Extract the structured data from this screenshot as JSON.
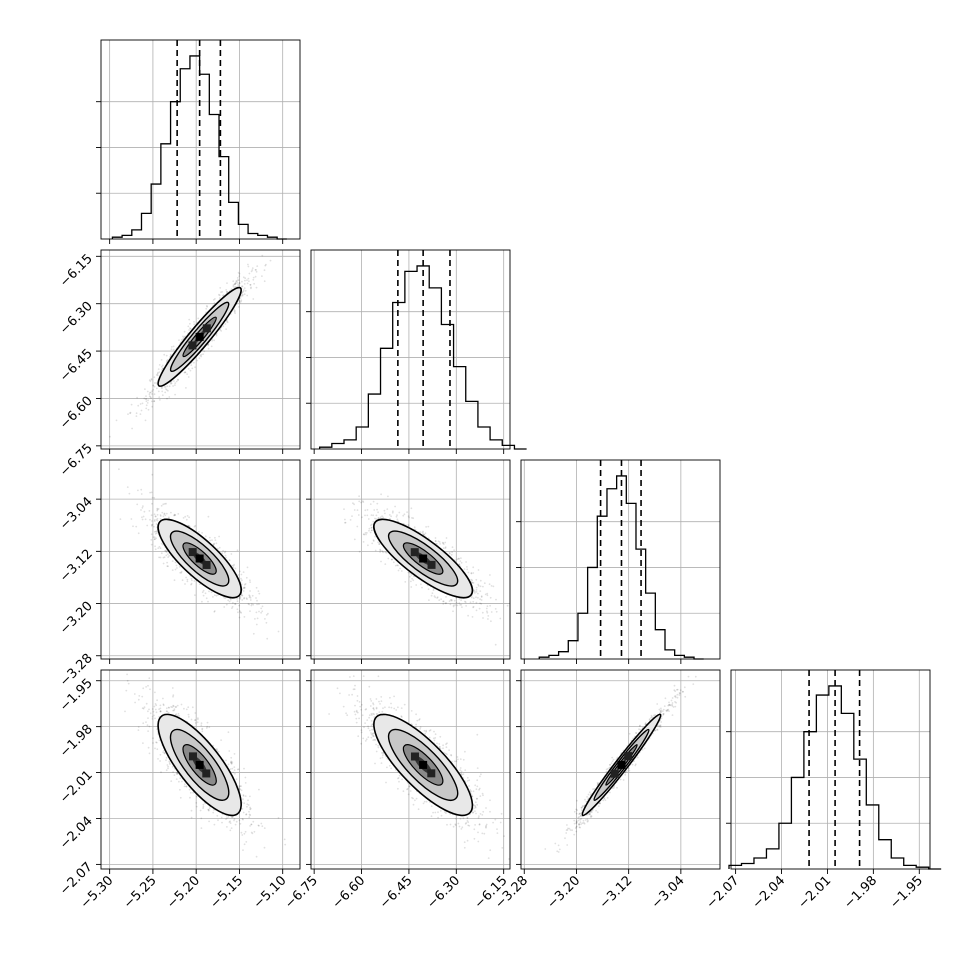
{
  "chart_data": {
    "type": "corner",
    "title": "",
    "parameters": [
      {
        "label": "",
        "range": [
          -5.31,
          -5.08
        ],
        "ticks": [
          -5.3,
          -5.25,
          -5.2,
          -5.15,
          -5.1
        ],
        "tick_labels": [
          "−5.30",
          "−5.25",
          "−5.20",
          "−5.15",
          "−5.10"
        ],
        "quantiles": [
          -5.222,
          -5.196,
          -5.172
        ],
        "mean": -5.196,
        "sd": 0.024
      },
      {
        "label": "",
        "range": [
          -6.76,
          -6.13
        ],
        "ticks": [
          -6.75,
          -6.6,
          -6.45,
          -6.3,
          -6.15
        ],
        "tick_labels": [
          "−6.75",
          "−6.60",
          "−6.45",
          "−6.30",
          "−6.15"
        ],
        "quantiles": [
          -6.485,
          -6.405,
          -6.32
        ],
        "mean": -6.405,
        "sd": 0.078
      },
      {
        "label": "",
        "range": [
          -3.285,
          -2.98
        ],
        "ticks": [
          -3.28,
          -3.2,
          -3.12,
          -3.04
        ],
        "tick_labels": [
          "−3.28",
          "−3.20",
          "−3.12",
          "−3.04"
        ],
        "quantiles": [
          -3.163,
          -3.131,
          -3.101
        ],
        "mean": -3.131,
        "sd": 0.03
      },
      {
        "label": "",
        "range": [
          -2.073,
          -1.943
        ],
        "ticks": [
          -2.07,
          -2.04,
          -2.01,
          -1.98,
          -1.95
        ],
        "tick_labels": [
          "−2.07",
          "−2.04",
          "−2.01",
          "−1.98",
          "−1.95"
        ],
        "quantiles": [
          -2.022,
          -2.005,
          -1.989
        ],
        "mean": -2.005,
        "sd": 0.0165
      }
    ],
    "correlations": [
      [
        1,
        0.95,
        -0.8,
        -0.78
      ],
      [
        0.95,
        1,
        -0.82,
        -0.8
      ],
      [
        -0.8,
        -0.82,
        1,
        0.98
      ],
      [
        -0.78,
        -0.8,
        0.98,
        1
      ]
    ],
    "histograms": [
      [
        0.01,
        0.02,
        0.05,
        0.14,
        0.3,
        0.52,
        0.75,
        0.93,
        1.0,
        0.9,
        0.68,
        0.45,
        0.2,
        0.08,
        0.03,
        0.02,
        0.01,
        0.0
      ],
      [
        0.01,
        0.03,
        0.05,
        0.12,
        0.3,
        0.55,
        0.8,
        0.97,
        1.0,
        0.88,
        0.68,
        0.45,
        0.26,
        0.12,
        0.05,
        0.02,
        0.0
      ],
      [
        0.01,
        0.02,
        0.04,
        0.1,
        0.25,
        0.5,
        0.78,
        0.93,
        1.0,
        0.85,
        0.6,
        0.36,
        0.16,
        0.05,
        0.02,
        0.01,
        0.0
      ],
      [
        0.02,
        0.03,
        0.06,
        0.11,
        0.25,
        0.5,
        0.75,
        0.95,
        1.0,
        0.85,
        0.6,
        0.35,
        0.16,
        0.06,
        0.02,
        0.01,
        0.0
      ]
    ],
    "grid": true,
    "legend": "none"
  }
}
